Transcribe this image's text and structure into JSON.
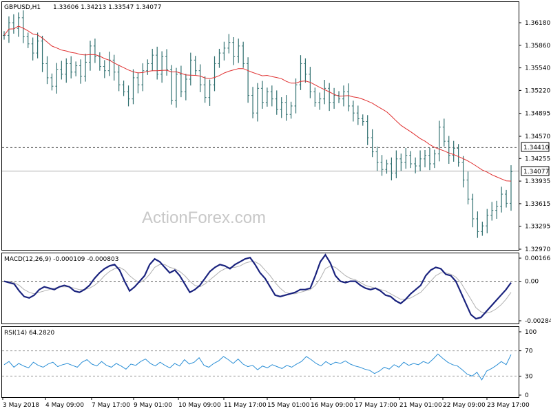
{
  "chart_data": {
    "type": "line",
    "symbol_label": "GBPUSD,H1",
    "ohlc_label": "1.33606 1.34213 1.33547 1.34077",
    "watermark": "ActionForex.com",
    "price_axis": {
      "ylim": [
        1.3287,
        1.364
      ],
      "ticks": [
        "1.36180",
        "1.35860",
        "1.35540",
        "1.35220",
        "1.34895",
        "1.34570",
        "1.34255",
        "1.33935",
        "1.33615",
        "1.33295",
        "1.32970"
      ],
      "level_line": {
        "value": 1.3441,
        "label": "1.34410"
      },
      "current_price": {
        "value": 1.34077,
        "label": "1.34077"
      }
    },
    "x_labels": [
      "3 May 2018",
      "4 May 09:00",
      "7 May 17:00",
      "9 May 01:00",
      "10 May 09:00",
      "11 May 17:00",
      "15 May 01:00",
      "16 May 09:00",
      "17 May 17:00",
      "21 May 01:00",
      "22 May 09:00",
      "23 May 17:00"
    ],
    "price_close": [
      1.36,
      1.3618,
      1.361,
      1.3625,
      1.3598,
      1.3588,
      1.3575,
      1.3592,
      1.356,
      1.354,
      1.3528,
      1.3552,
      1.3545,
      1.356,
      1.3548,
      1.3557,
      1.3542,
      1.3562,
      1.3585,
      1.357,
      1.3556,
      1.355,
      1.3565,
      1.3548,
      1.353,
      1.352,
      1.351,
      1.354,
      1.353,
      1.355,
      1.356,
      1.3572,
      1.3545,
      1.357,
      1.3552,
      1.3508,
      1.3545,
      1.352,
      1.3538,
      1.3565,
      1.355,
      1.353,
      1.3512,
      1.353,
      1.356,
      1.3575,
      1.3582,
      1.359,
      1.357,
      1.3585,
      1.356,
      1.3515,
      1.349,
      1.3525,
      1.3505,
      1.352,
      1.351,
      1.3495,
      1.3505,
      1.3488,
      1.35,
      1.353,
      1.356,
      1.3545,
      1.352,
      1.3505,
      1.351,
      1.3525,
      1.3505,
      1.3515,
      1.351,
      1.352,
      1.35,
      1.349,
      1.3482,
      1.3478,
      1.3455,
      1.3435,
      1.342,
      1.341,
      1.3418,
      1.3405,
      1.3425,
      1.342,
      1.343,
      1.3418,
      1.3415,
      1.3425,
      1.343,
      1.3418,
      1.3432,
      1.347,
      1.345,
      1.343,
      1.344,
      1.342,
      1.3395,
      1.3368,
      1.334,
      1.3322,
      1.333,
      1.3345,
      1.3352,
      1.3358,
      1.3375,
      1.3362,
      1.3407
    ],
    "ma": {
      "value_range": [
        1.3389,
        1.3625
      ]
    },
    "macd": {
      "label": "MACD(12,26,9) -0.000109 -0.000803",
      "ticks": [
        "0.001661",
        "0.00",
        "-0.002842"
      ],
      "ylim": [
        -0.0031,
        0.0019
      ],
      "main": [
        0.0,
        -0.0001,
        -0.0002,
        -0.0007,
        -0.0011,
        -0.0012,
        -0.001,
        -0.0006,
        -0.0004,
        -0.0005,
        -0.0006,
        -0.0004,
        -0.0003,
        -0.0004,
        -0.0007,
        -0.0008,
        -0.0006,
        -0.0003,
        0.0002,
        0.0006,
        0.0009,
        0.0011,
        0.0012,
        0.0008,
        0.0,
        -0.0007,
        -0.0004,
        0.0,
        0.0004,
        0.0012,
        0.0016,
        0.0014,
        0.001,
        0.0006,
        0.0008,
        0.0004,
        -0.0002,
        -0.0008,
        -0.0006,
        -0.0003,
        0.0002,
        0.0007,
        0.001,
        0.0012,
        0.0011,
        0.0009,
        0.0012,
        0.0014,
        0.0016,
        0.0017,
        0.0012,
        0.0006,
        0.0002,
        -0.0004,
        -0.001,
        -0.0011,
        -0.001,
        -0.0009,
        -0.0008,
        -0.0006,
        -0.0006,
        -0.0005,
        0.0004,
        0.0014,
        0.0019,
        0.0013,
        0.0004,
        0.0,
        -0.0001,
        0.0,
        0.0,
        -0.0003,
        -0.0005,
        -0.0006,
        -0.0005,
        -0.0007,
        -0.001,
        -0.0011,
        -0.0014,
        -0.0016,
        -0.0013,
        -0.0009,
        -0.0006,
        -0.0003,
        0.0004,
        0.0008,
        0.001,
        0.0009,
        0.0005,
        0.0004,
        0.0,
        -0.0008,
        -0.0016,
        -0.0024,
        -0.0027,
        -0.0026,
        -0.0022,
        -0.0018,
        -0.0014,
        -0.001,
        -0.0006,
        -0.0001
      ],
      "signal": [
        0.0,
        0.0,
        -0.0001,
        -0.0003,
        -0.0006,
        -0.0008,
        -0.0009,
        -0.0008,
        -0.0007,
        -0.0006,
        -0.0005,
        -0.0004,
        -0.0004,
        -0.0004,
        -0.0005,
        -0.0006,
        -0.0006,
        -0.0005,
        -0.0003,
        0.0,
        0.0004,
        0.0007,
        0.0009,
        0.001,
        0.0008,
        0.0004,
        0.0001,
        -0.0001,
        0.0001,
        0.0005,
        0.001,
        0.0012,
        0.0012,
        0.001,
        0.0009,
        0.0007,
        0.0004,
        0.0,
        -0.0003,
        -0.0004,
        -0.0002,
        0.0001,
        0.0004,
        0.0007,
        0.0009,
        0.001,
        0.001,
        0.0011,
        0.0013,
        0.0014,
        0.0014,
        0.0012,
        0.0008,
        0.0004,
        -0.0001,
        -0.0005,
        -0.0008,
        -0.0009,
        -0.0009,
        -0.0008,
        -0.0007,
        -0.0006,
        -0.0003,
        0.0002,
        0.0009,
        0.0011,
        0.001,
        0.0007,
        0.0004,
        0.0002,
        0.0001,
        -0.0001,
        -0.0003,
        -0.0004,
        -0.0005,
        -0.0006,
        -0.0007,
        -0.0009,
        -0.0011,
        -0.0013,
        -0.0013,
        -0.0012,
        -0.001,
        -0.0008,
        -0.0004,
        0.0,
        0.0004,
        0.0006,
        0.0006,
        0.0005,
        0.0003,
        -0.0001,
        -0.0007,
        -0.0013,
        -0.0019,
        -0.0022,
        -0.0023,
        -0.0022,
        -0.002,
        -0.0017,
        -0.0013,
        -0.0008
      ]
    },
    "rsi": {
      "label": "RSI(14) 64.2820",
      "ticks": [
        "100",
        "70",
        "30",
        "0"
      ],
      "ylim": [
        0,
        100
      ],
      "levels": [
        70,
        30
      ],
      "values": [
        48,
        53,
        44,
        50,
        46,
        43,
        52,
        47,
        44,
        49,
        52,
        45,
        48,
        50,
        47,
        44,
        52,
        56,
        49,
        46,
        53,
        47,
        44,
        50,
        46,
        41,
        49,
        47,
        53,
        57,
        50,
        46,
        52,
        47,
        43,
        50,
        46,
        56,
        49,
        52,
        59,
        47,
        44,
        50,
        54,
        61,
        56,
        50,
        57,
        49,
        45,
        47,
        40,
        46,
        43,
        48,
        45,
        42,
        47,
        44,
        49,
        53,
        61,
        56,
        50,
        46,
        53,
        48,
        52,
        50,
        54,
        49,
        46,
        44,
        41,
        39,
        34,
        38,
        44,
        41,
        48,
        44,
        52,
        47,
        50,
        48,
        53,
        50,
        57,
        65,
        58,
        52,
        48,
        46,
        40,
        33,
        30,
        36,
        24,
        38,
        42,
        47,
        53,
        48,
        64
      ]
    }
  }
}
